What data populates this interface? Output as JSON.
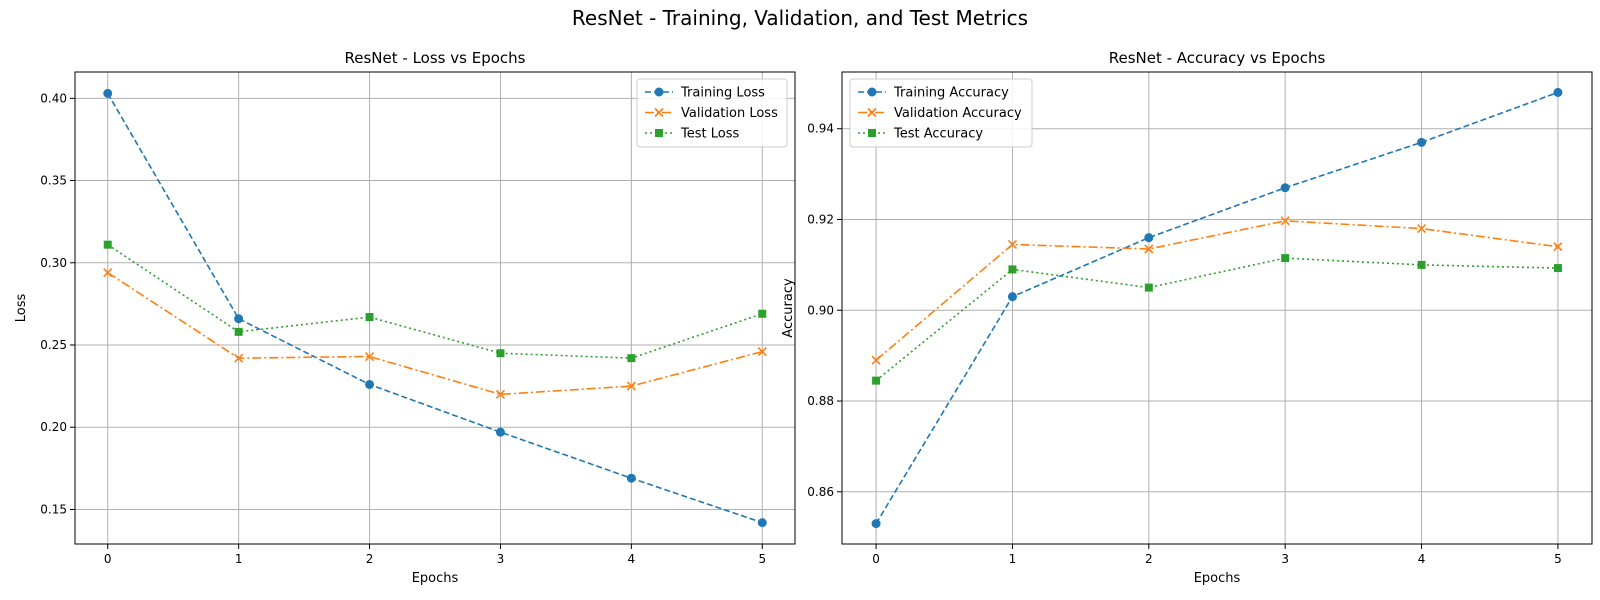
{
  "figure": {
    "title": "ResNet - Training, Validation, and Test Metrics"
  },
  "chart_data": [
    {
      "type": "line",
      "title": "ResNet - Loss vs Epochs",
      "xlabel": "Epochs",
      "ylabel": "Loss",
      "x": [
        0,
        1,
        2,
        3,
        4,
        5
      ],
      "xlim": [
        -0.25,
        5.25
      ],
      "ylim": [
        0.129,
        0.416
      ],
      "xticks": [
        0,
        1,
        2,
        3,
        4,
        5
      ],
      "yticks": [
        0.15,
        0.2,
        0.25,
        0.3,
        0.35,
        0.4
      ],
      "ytick_labels": [
        "0.15",
        "0.20",
        "0.25",
        "0.30",
        "0.35",
        "0.40"
      ],
      "grid": true,
      "legend_position": "top-right",
      "series": [
        {
          "name": "Training Loss",
          "values": [
            0.403,
            0.266,
            0.226,
            0.197,
            0.169,
            0.142
          ],
          "color": "#1f77b4",
          "marker": "circle",
          "dash": "dashed"
        },
        {
          "name": "Validation Loss",
          "values": [
            0.294,
            0.242,
            0.243,
            0.22,
            0.225,
            0.246
          ],
          "color": "#ff7f0e",
          "marker": "x",
          "dash": "dashdot"
        },
        {
          "name": "Test Loss",
          "values": [
            0.311,
            0.258,
            0.267,
            0.245,
            0.242,
            0.269
          ],
          "color": "#2ca02c",
          "marker": "square",
          "dash": "dotted"
        }
      ]
    },
    {
      "type": "line",
      "title": "ResNet - Accuracy vs Epochs",
      "xlabel": "Epochs",
      "ylabel": "Accuracy",
      "x": [
        0,
        1,
        2,
        3,
        4,
        5
      ],
      "xlim": [
        -0.25,
        5.25
      ],
      "ylim": [
        0.8485,
        0.9525
      ],
      "xticks": [
        0,
        1,
        2,
        3,
        4,
        5
      ],
      "yticks": [
        0.86,
        0.88,
        0.9,
        0.92,
        0.94
      ],
      "ytick_labels": [
        "0.86",
        "0.88",
        "0.90",
        "0.92",
        "0.94"
      ],
      "grid": true,
      "legend_position": "top-left",
      "series": [
        {
          "name": "Training Accuracy",
          "values": [
            0.853,
            0.903,
            0.916,
            0.927,
            0.937,
            0.948
          ],
          "color": "#1f77b4",
          "marker": "circle",
          "dash": "dashed"
        },
        {
          "name": "Validation Accuracy",
          "values": [
            0.889,
            0.9145,
            0.9135,
            0.9197,
            0.918,
            0.914
          ],
          "color": "#ff7f0e",
          "marker": "x",
          "dash": "dashdot"
        },
        {
          "name": "Test Accuracy",
          "values": [
            0.8845,
            0.909,
            0.905,
            0.9115,
            0.91,
            0.9093
          ],
          "color": "#2ca02c",
          "marker": "square",
          "dash": "dotted"
        }
      ]
    }
  ]
}
